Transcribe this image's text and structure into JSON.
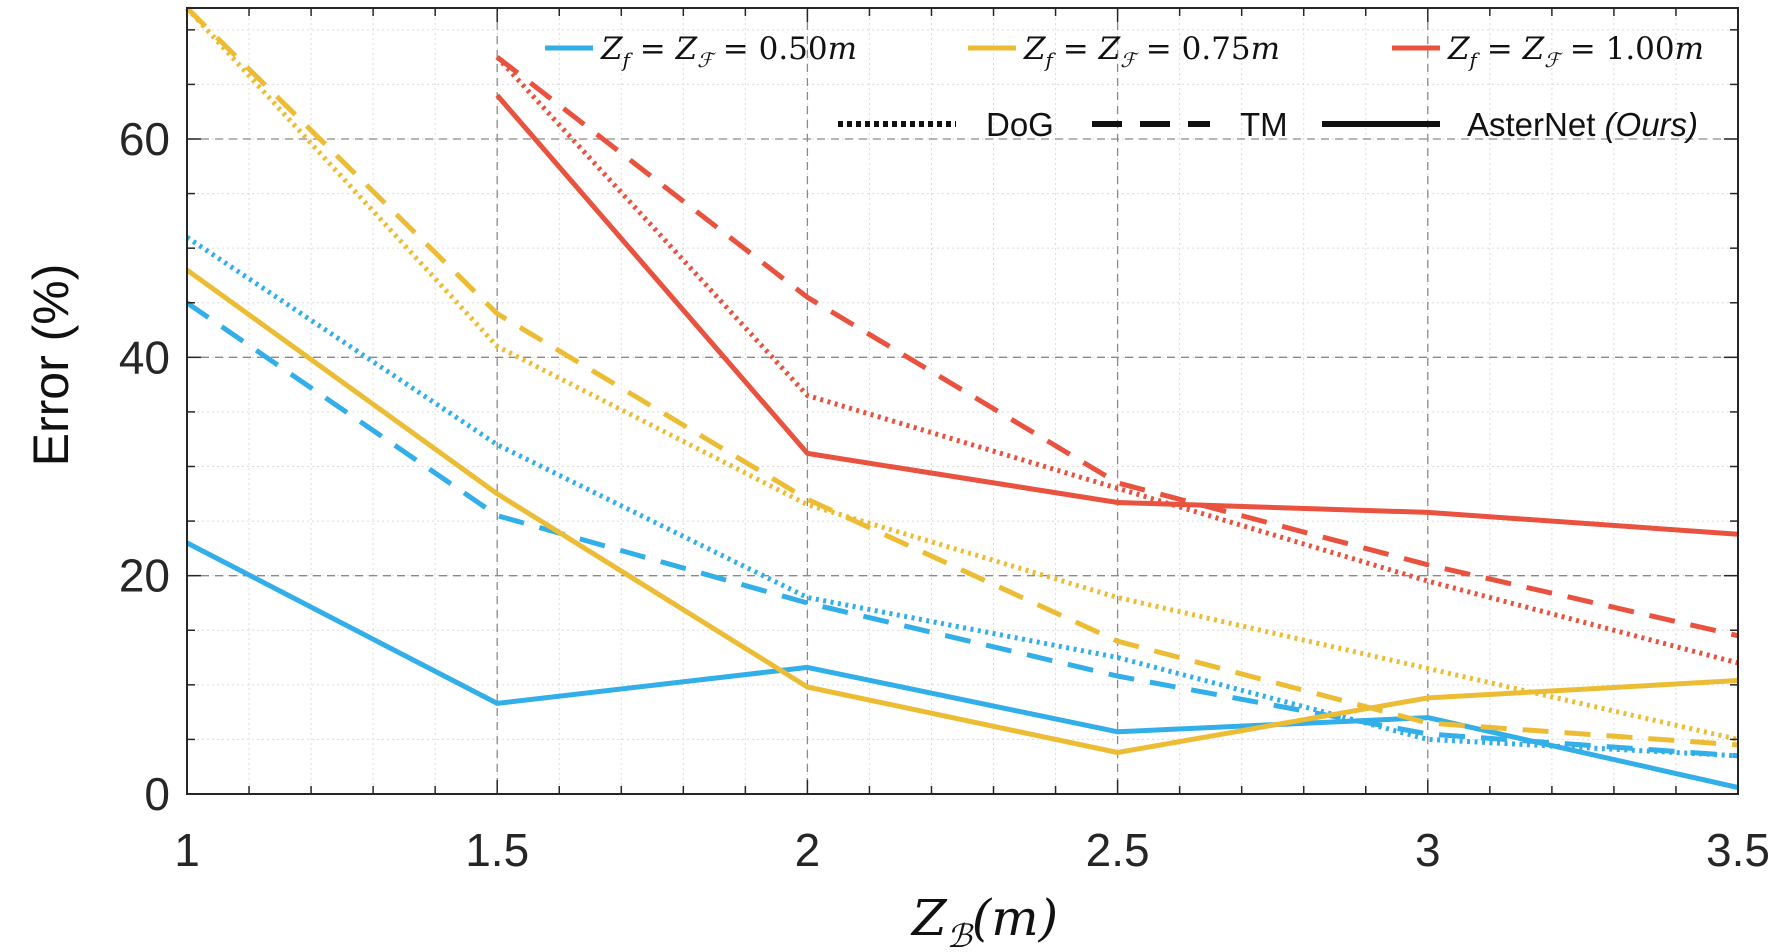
{
  "chart_data": {
    "type": "line",
    "xlabel": "Z_B(m)",
    "xlabel_parts": {
      "main": "Z",
      "subscript": "ℬ",
      "rest": "(m)"
    },
    "ylabel": "Error (%)",
    "xlim": [
      1,
      3.5
    ],
    "ylim": [
      0,
      72
    ],
    "xticks": [
      1,
      1.5,
      2,
      2.5,
      3,
      3.5
    ],
    "xtick_labels": [
      "1",
      "1.5",
      "2",
      "2.5",
      "3",
      "3.5"
    ],
    "yticks": [
      0,
      20,
      40,
      60
    ],
    "ytick_labels": [
      "0",
      "20",
      "40",
      "60"
    ],
    "grid": true,
    "minor_grid": true,
    "color_legend": {
      "placement": "top",
      "entries": [
        {
          "label": "Z_f = Z_F = 0.50m",
          "parts": [
            "Z",
            "f",
            " = Z",
            "ℱ",
            " = 0.50",
            "m"
          ],
          "color": "#32aee8"
        },
        {
          "label": "Z_f = Z_F = 0.75m",
          "parts": [
            "Z",
            "f",
            " = Z",
            "ℱ",
            " = 0.75",
            "m"
          ],
          "color": "#ecbd34"
        },
        {
          "label": "Z_f = Z_F = 1.00m",
          "parts": [
            "Z",
            "f",
            " = Z",
            "ℱ",
            " = 1.00",
            "m"
          ],
          "color": "#e8523f"
        }
      ]
    },
    "style_legend": {
      "placement": "top-right",
      "entries": [
        {
          "label": "DoG",
          "style": "dotted"
        },
        {
          "label": "TM",
          "style": "dashed"
        },
        {
          "label": "AsterNet",
          "suffix": "(Ours)",
          "style": "solid"
        }
      ]
    },
    "series": [
      {
        "group": "0.50",
        "method": "DoG",
        "style": "dotted",
        "color": "#32aee8",
        "x": [
          1,
          1.5,
          2,
          2.5,
          3,
          3.5
        ],
        "y": [
          51,
          32,
          18,
          12.5,
          5,
          3.5
        ]
      },
      {
        "group": "0.50",
        "method": "TM",
        "style": "dashed",
        "color": "#32aee8",
        "x": [
          1,
          1.5,
          2,
          2.5,
          3,
          3.5
        ],
        "y": [
          45,
          25.5,
          17.5,
          10.8,
          5.5,
          3.5
        ]
      },
      {
        "group": "0.50",
        "method": "AsterNet",
        "style": "solid",
        "color": "#32aee8",
        "x": [
          1,
          1.5,
          2,
          2.5,
          3,
          3.5
        ],
        "y": [
          23,
          8.3,
          11.6,
          5.7,
          7,
          0.6
        ]
      },
      {
        "group": "0.75",
        "method": "DoG",
        "style": "dotted",
        "color": "#ecbd34",
        "x": [
          1,
          1.5,
          2,
          2.5,
          3,
          3.5
        ],
        "y": [
          72,
          41,
          26.5,
          18,
          11.5,
          5
        ]
      },
      {
        "group": "0.75",
        "method": "TM",
        "style": "dashed",
        "color": "#ecbd34",
        "x": [
          1,
          1.5,
          2,
          2.5,
          3,
          3.5
        ],
        "y": [
          72,
          44,
          27,
          14,
          6.5,
          4.5
        ]
      },
      {
        "group": "0.75",
        "method": "AsterNet",
        "style": "solid",
        "color": "#ecbd34",
        "x": [
          1,
          1.5,
          2,
          2.5,
          3,
          3.5
        ],
        "y": [
          48,
          27.5,
          9.8,
          3.8,
          8.8,
          10.4
        ]
      },
      {
        "group": "1.00",
        "method": "DoG",
        "style": "dotted",
        "color": "#e8523f",
        "x": [
          1.5,
          2,
          2.5,
          3,
          3.5
        ],
        "y": [
          67.5,
          36.5,
          28,
          19.5,
          12
        ]
      },
      {
        "group": "1.00",
        "method": "TM",
        "style": "dashed",
        "color": "#e8523f",
        "x": [
          1.5,
          2,
          2.5,
          3,
          3.5
        ],
        "y": [
          67.5,
          45.5,
          28.5,
          21,
          14.5
        ]
      },
      {
        "group": "1.00",
        "method": "AsterNet",
        "style": "solid",
        "color": "#e8523f",
        "x": [
          1.5,
          2,
          2.5,
          3,
          3.5
        ],
        "y": [
          64,
          31.2,
          26.7,
          25.8,
          23.8
        ]
      }
    ]
  }
}
